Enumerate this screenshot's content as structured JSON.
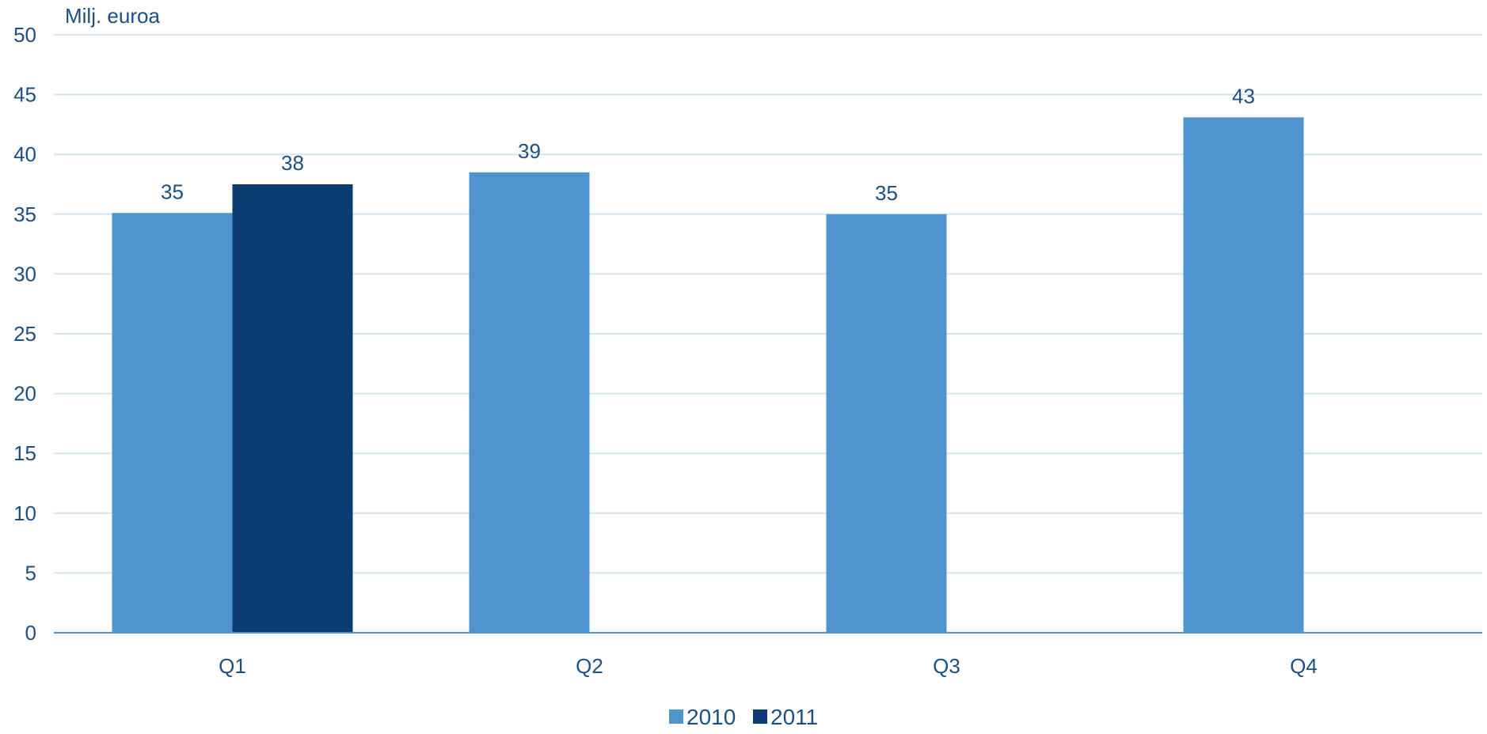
{
  "chart_data": {
    "type": "bar",
    "title": "",
    "ylabel": "Milj. euroa",
    "xlabel": "",
    "categories": [
      "Q1",
      "Q2",
      "Q3",
      "Q4"
    ],
    "ylim": [
      0,
      50
    ],
    "yticks": [
      0,
      5,
      10,
      15,
      20,
      25,
      30,
      35,
      40,
      45,
      50
    ],
    "grid": true,
    "legend_position": "bottom-center",
    "series": [
      {
        "name": "2010",
        "color": "#4f94cd",
        "values": [
          35.1,
          38.5,
          35.0,
          43.1
        ],
        "labels": [
          "35",
          "39",
          "35",
          "43"
        ]
      },
      {
        "name": "2011",
        "color": "#0b3c73",
        "values": [
          37.5,
          null,
          null,
          null
        ],
        "labels": [
          "38",
          "",
          "",
          ""
        ]
      }
    ]
  }
}
